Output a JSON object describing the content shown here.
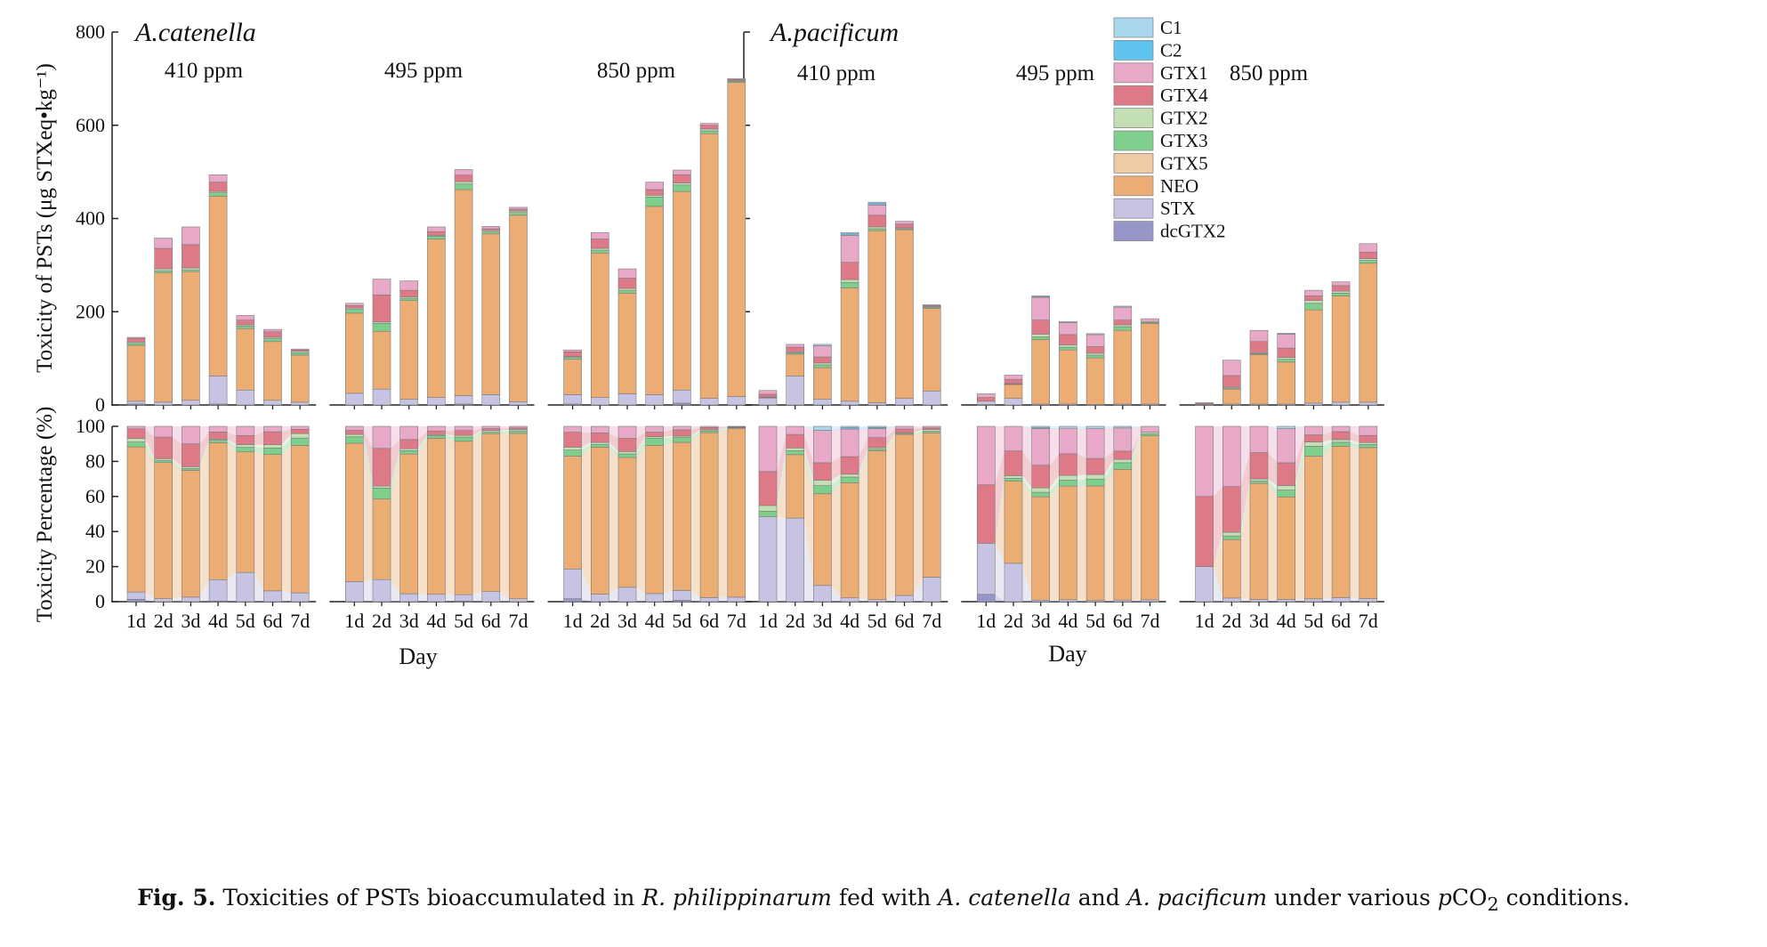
{
  "chart_data": {
    "type": "bar",
    "stacked": true,
    "days": [
      "1d",
      "2d",
      "3d",
      "4d",
      "5d",
      "6d",
      "7d"
    ],
    "components": [
      "C1",
      "C2",
      "GTX1",
      "GTX4",
      "GTX2",
      "GTX3",
      "GTX5",
      "NEO",
      "STX",
      "dcGTX2"
    ],
    "colors": {
      "C1": "#a9d8ee",
      "C2": "#5fc3ef",
      "GTX1": "#e8a9c9",
      "GTX4": "#de7987",
      "GTX2": "#c5dfb4",
      "GTX3": "#7fcf8c",
      "GTX5": "#f0caa3",
      "NEO": "#ebad74",
      "STX": "#c6c4e2",
      "dcGTX2": "#9697c8"
    },
    "upper_axis": {
      "ylabel": "Toxicity of PSTs (μg STXeq•kg⁻¹)",
      "ylim": [
        0,
        800
      ],
      "ticks": [
        "0",
        "200",
        "400",
        "600",
        "800"
      ]
    },
    "lower_axis": {
      "ylabel": "Toxicity Percentage (%)",
      "ylim": [
        0,
        100
      ],
      "ticks": [
        "0",
        "20",
        "40",
        "60",
        "80",
        "100"
      ]
    },
    "xlabel": "Day",
    "species": [
      {
        "name": "A.catenella",
        "groups": [
          {
            "label": "410 ppm",
            "bars": [
              {
                "C1": 0,
                "C2": 0,
                "GTX1": 2,
                "GTX4": 8,
                "GTX2": 3,
                "GTX3": 4,
                "GTX5": 0,
                "NEO": 120,
                "STX": 6,
                "dcGTX2": 2
              },
              {
                "C1": 0,
                "C2": 0,
                "GTX1": 22,
                "GTX4": 44,
                "GTX2": 4,
                "GTX3": 4,
                "GTX5": 0,
                "NEO": 278,
                "STX": 6,
                "dcGTX2": 0
              },
              {
                "C1": 0,
                "C2": 0,
                "GTX1": 38,
                "GTX4": 50,
                "GTX2": 4,
                "GTX3": 4,
                "GTX5": 0,
                "NEO": 276,
                "STX": 10,
                "dcGTX2": 0
              },
              {
                "C1": 0,
                "C2": 0,
                "GTX1": 16,
                "GTX4": 20,
                "GTX2": 3,
                "GTX3": 7,
                "GTX5": 0,
                "NEO": 386,
                "STX": 60,
                "dcGTX2": 2
              },
              {
                "C1": 0,
                "C2": 0,
                "GTX1": 10,
                "GTX4": 10,
                "GTX2": 3,
                "GTX3": 5,
                "GTX5": 0,
                "NEO": 132,
                "STX": 32,
                "dcGTX2": 0
              },
              {
                "C1": 0,
                "C2": 0,
                "GTX1": 5,
                "GTX4": 12,
                "GTX2": 3,
                "GTX3": 6,
                "GTX5": 0,
                "NEO": 126,
                "STX": 10,
                "dcGTX2": 0
              },
              {
                "C1": 0,
                "C2": 0,
                "GTX1": 2,
                "GTX4": 3,
                "GTX2": 3,
                "GTX3": 5,
                "GTX5": 0,
                "NEO": 101,
                "STX": 6,
                "dcGTX2": 0
              }
            ]
          },
          {
            "label": "495 ppm",
            "bars": [
              {
                "C1": 0,
                "C2": 0,
                "GTX1": 5,
                "GTX4": 5,
                "GTX2": 3,
                "GTX3": 8,
                "GTX5": 0,
                "NEO": 172,
                "STX": 25,
                "dcGTX2": 0
              },
              {
                "C1": 0,
                "C2": 0,
                "GTX1": 34,
                "GTX4": 58,
                "GTX2": 3,
                "GTX3": 17,
                "GTX5": 0,
                "NEO": 124,
                "STX": 34,
                "dcGTX2": 0
              },
              {
                "C1": 0,
                "C2": 0,
                "GTX1": 20,
                "GTX4": 14,
                "GTX2": 3,
                "GTX3": 5,
                "GTX5": 0,
                "NEO": 212,
                "STX": 12,
                "dcGTX2": 0
              },
              {
                "C1": 0,
                "C2": 0,
                "GTX1": 10,
                "GTX4": 8,
                "GTX2": 2,
                "GTX3": 6,
                "GTX5": 0,
                "NEO": 340,
                "STX": 16,
                "dcGTX2": 0
              },
              {
                "C1": 0,
                "C2": 0,
                "GTX1": 12,
                "GTX4": 14,
                "GTX2": 5,
                "GTX3": 12,
                "GTX5": 0,
                "NEO": 442,
                "STX": 18,
                "dcGTX2": 2
              },
              {
                "C1": 0,
                "C2": 0,
                "GTX1": 5,
                "GTX4": 4,
                "GTX2": 3,
                "GTX3": 4,
                "GTX5": 0,
                "NEO": 345,
                "STX": 22,
                "dcGTX2": 0
              },
              {
                "C1": 0,
                "C2": 0,
                "GTX1": 4,
                "GTX4": 4,
                "GTX2": 3,
                "GTX3": 6,
                "GTX5": 0,
                "NEO": 400,
                "STX": 7,
                "dcGTX2": 0
              }
            ]
          },
          {
            "label": "850 ppm",
            "bars": [
              {
                "C1": 0,
                "C2": 0,
                "GTX1": 4,
                "GTX4": 10,
                "GTX2": 2,
                "GTX3": 4,
                "GTX5": 0,
                "NEO": 76,
                "STX": 20,
                "dcGTX2": 2
              },
              {
                "C1": 0,
                "C2": 0,
                "GTX1": 14,
                "GTX4": 20,
                "GTX2": 4,
                "GTX3": 6,
                "GTX5": 0,
                "NEO": 310,
                "STX": 16,
                "dcGTX2": 0
              },
              {
                "C1": 0,
                "C2": 0,
                "GTX1": 20,
                "GTX4": 22,
                "GTX2": 4,
                "GTX3": 6,
                "GTX5": 0,
                "NEO": 216,
                "STX": 24,
                "dcGTX2": 0
              },
              {
                "C1": 0,
                "C2": 0,
                "GTX1": 16,
                "GTX4": 12,
                "GTX2": 4,
                "GTX3": 20,
                "GTX5": 0,
                "NEO": 404,
                "STX": 22,
                "dcGTX2": 0
              },
              {
                "C1": 0,
                "C2": 0,
                "GTX1": 10,
                "GTX4": 18,
                "GTX2": 4,
                "GTX3": 14,
                "GTX5": 0,
                "NEO": 426,
                "STX": 28,
                "dcGTX2": 4
              },
              {
                "C1": 0,
                "C2": 0,
                "GTX1": 4,
                "GTX4": 8,
                "GTX2": 4,
                "GTX3": 6,
                "GTX5": 0,
                "NEO": 568,
                "STX": 14,
                "dcGTX2": 0
              },
              {
                "C1": 0,
                "C2": 0,
                "GTX1": 2,
                "GTX4": 2,
                "GTX2": 2,
                "GTX3": 2,
                "GTX5": 0,
                "NEO": 674,
                "STX": 18,
                "dcGTX2": 0
              }
            ]
          }
        ]
      },
      {
        "name": "A.pacificum",
        "groups": [
          {
            "label": "410 ppm",
            "bars": [
              {
                "C1": 0,
                "C2": 0,
                "GTX1": 8,
                "GTX4": 6,
                "GTX2": 1,
                "GTX3": 1,
                "GTX5": 0,
                "NEO": 0,
                "STX": 15,
                "dcGTX2": 0
              },
              {
                "C1": 0,
                "C2": 0,
                "GTX1": 6,
                "GTX4": 10,
                "GTX2": 2,
                "GTX3": 3,
                "GTX5": 0,
                "NEO": 47,
                "STX": 62,
                "dcGTX2": 0
              },
              {
                "C1": 3,
                "C2": 0,
                "GTX1": 24,
                "GTX4": 13,
                "GTX2": 4,
                "GTX3": 6,
                "GTX5": 0,
                "NEO": 68,
                "STX": 12,
                "dcGTX2": 0
              },
              {
                "C1": 3,
                "C2": 3,
                "GTX1": 58,
                "GTX4": 37,
                "GTX2": 6,
                "GTX3": 12,
                "GTX5": 0,
                "NEO": 243,
                "STX": 8,
                "dcGTX2": 0
              },
              {
                "C1": 3,
                "C2": 3,
                "GTX1": 22,
                "GTX4": 25,
                "GTX2": 4,
                "GTX3": 4,
                "GTX5": 0,
                "NEO": 369,
                "STX": 5,
                "dcGTX2": 0
              },
              {
                "C1": 0,
                "C2": 0,
                "GTX1": 6,
                "GTX4": 8,
                "GTX2": 2,
                "GTX3": 2,
                "GTX5": 0,
                "NEO": 362,
                "STX": 14,
                "dcGTX2": 0
              },
              {
                "C1": 0,
                "C2": 0,
                "GTX1": 2,
                "GTX4": 2,
                "GTX2": 2,
                "GTX3": 2,
                "GTX5": 0,
                "NEO": 177,
                "STX": 30,
                "dcGTX2": 0
              }
            ]
          },
          {
            "label": "495 ppm",
            "bars": [
              {
                "C1": 0,
                "C2": 0,
                "GTX1": 8,
                "GTX4": 8,
                "GTX2": 0,
                "GTX3": 0,
                "GTX5": 0,
                "NEO": 0,
                "STX": 7,
                "dcGTX2": 1
              },
              {
                "C1": 0,
                "C2": 0,
                "GTX1": 9,
                "GTX4": 9,
                "GTX2": 1,
                "GTX3": 1,
                "GTX5": 0,
                "NEO": 30,
                "STX": 14,
                "dcGTX2": 0
              },
              {
                "C1": 2,
                "C2": 1,
                "GTX1": 49,
                "GTX4": 30,
                "GTX2": 6,
                "GTX3": 6,
                "GTX5": 0,
                "NEO": 138,
                "STX": 2,
                "dcGTX2": 0
              },
              {
                "C1": 2,
                "C2": 0,
                "GTX1": 26,
                "GTX4": 22,
                "GTX2": 5,
                "GTX3": 6,
                "GTX5": 0,
                "NEO": 116,
                "STX": 2,
                "dcGTX2": 0
              },
              {
                "C1": 2,
                "C2": 0,
                "GTX1": 26,
                "GTX4": 14,
                "GTX2": 4,
                "GTX3": 6,
                "GTX5": 0,
                "NEO": 100,
                "STX": 1,
                "dcGTX2": 0
              },
              {
                "C1": 2,
                "C2": 0,
                "GTX1": 28,
                "GTX4": 10,
                "GTX2": 4,
                "GTX3": 8,
                "GTX5": 0,
                "NEO": 158,
                "STX": 2,
                "dcGTX2": 0
              },
              {
                "C1": 0,
                "C2": 0,
                "GTX1": 6,
                "GTX4": 0,
                "GTX2": 2,
                "GTX3": 2,
                "GTX5": 0,
                "NEO": 173,
                "STX": 2,
                "dcGTX2": 0
              }
            ]
          },
          {
            "label": "850 ppm",
            "bars": [
              {
                "C1": 0,
                "C2": 0,
                "GTX1": 2,
                "GTX4": 2,
                "GTX2": 0,
                "GTX3": 0,
                "GTX5": 0,
                "NEO": 0,
                "STX": 1,
                "dcGTX2": 0
              },
              {
                "C1": 0,
                "C2": 0,
                "GTX1": 33,
                "GTX4": 25,
                "GTX2": 2,
                "GTX3": 2,
                "GTX5": 0,
                "NEO": 32,
                "STX": 2,
                "dcGTX2": 0
              },
              {
                "C1": 0,
                "C2": 0,
                "GTX1": 24,
                "GTX4": 24,
                "GTX2": 2,
                "GTX3": 2,
                "GTX5": 0,
                "NEO": 106,
                "STX": 2,
                "dcGTX2": 0
              },
              {
                "C1": 2,
                "C2": 0,
                "GTX1": 30,
                "GTX4": 20,
                "GTX2": 4,
                "GTX3": 6,
                "GTX5": 0,
                "NEO": 90,
                "STX": 2,
                "dcGTX2": 0
              },
              {
                "C1": 0,
                "C2": 0,
                "GTX1": 12,
                "GTX4": 10,
                "GTX2": 6,
                "GTX3": 14,
                "GTX5": 0,
                "NEO": 200,
                "STX": 4,
                "dcGTX2": 0
              },
              {
                "C1": 0,
                "C2": 0,
                "GTX1": 8,
                "GTX4": 12,
                "GTX2": 4,
                "GTX3": 6,
                "GTX5": 0,
                "NEO": 228,
                "STX": 6,
                "dcGTX2": 0
              },
              {
                "C1": 0,
                "C2": 0,
                "GTX1": 18,
                "GTX4": 14,
                "GTX2": 4,
                "GTX3": 6,
                "GTX5": 0,
                "NEO": 298,
                "STX": 6,
                "dcGTX2": 0
              }
            ]
          }
        ]
      }
    ]
  },
  "caption": {
    "label": "Fig. 5.",
    "text_parts": [
      {
        "t": "Toxicities of PSTs bioaccumulated in ",
        "i": false
      },
      {
        "t": "R. philippinarum",
        "i": true
      },
      {
        "t": " fed with ",
        "i": false
      },
      {
        "t": "A. catenella",
        "i": true
      },
      {
        "t": " and ",
        "i": false
      },
      {
        "t": "A. pacificum",
        "i": true
      },
      {
        "t": " under various ",
        "i": false
      },
      {
        "t": "p",
        "i": true
      },
      {
        "t": "CO",
        "i": false
      },
      {
        "t": "2",
        "i": false,
        "sub": true
      },
      {
        "t": " conditions.",
        "i": false
      }
    ]
  }
}
